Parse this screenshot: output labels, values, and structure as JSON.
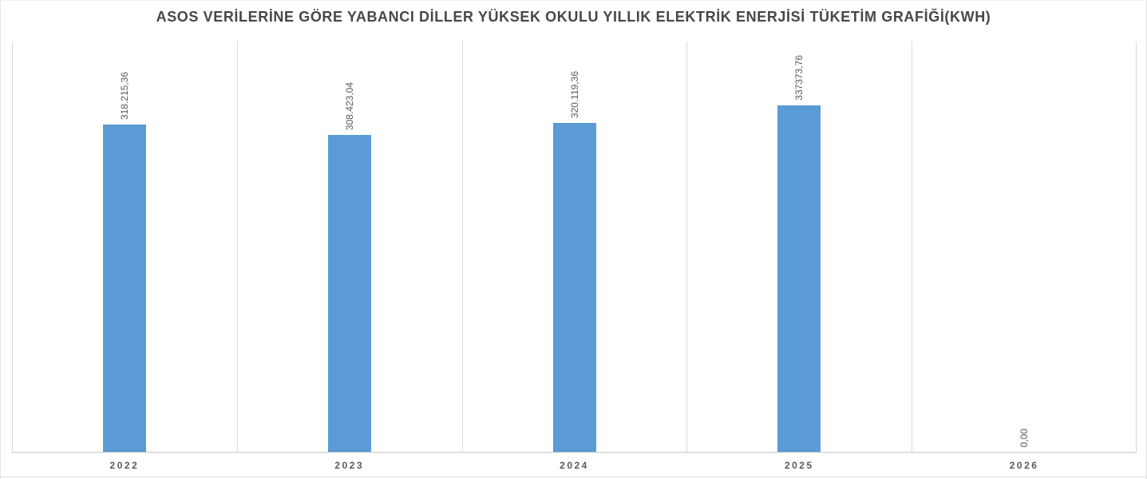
{
  "title": "ASOS VERİLERİNE GÖRE YABANCI DİLLER YÜKSEK OKULU YILLIK ELEKTRİK ENERJİSİ TÜKETİM GRAFİĞİ(KWH)",
  "colors": {
    "bar": "#5B9BD5",
    "title_text": "#474747",
    "label_text": "#595959",
    "gridline": "#D9D9D9",
    "axis_line": "#C6C6C6"
  },
  "chart_data": {
    "type": "bar",
    "title": "ASOS VERİLERİNE GÖRE YABANCI DİLLER YÜKSEK OKULU YILLIK ELEKTRİK ENERJİSİ TÜKETİM GRAFİĞİ(KWH)",
    "categories": [
      "2022",
      "2023",
      "2024",
      "2025",
      "2026"
    ],
    "values": [
      318215.36,
      308423.04,
      320119.36,
      337373.76,
      0
    ],
    "value_labels": [
      "318.215,36",
      "308.423,04",
      "320.119,36",
      "337373,76",
      "0,00"
    ],
    "value_label_rotation_deg": 90,
    "xlabel": "",
    "ylabel": "",
    "ylim": [
      0,
      400000
    ],
    "y_axis_visible": false,
    "grid": "vertical category separators only",
    "legend_position": "none",
    "bar_color": "#5B9BD5"
  }
}
